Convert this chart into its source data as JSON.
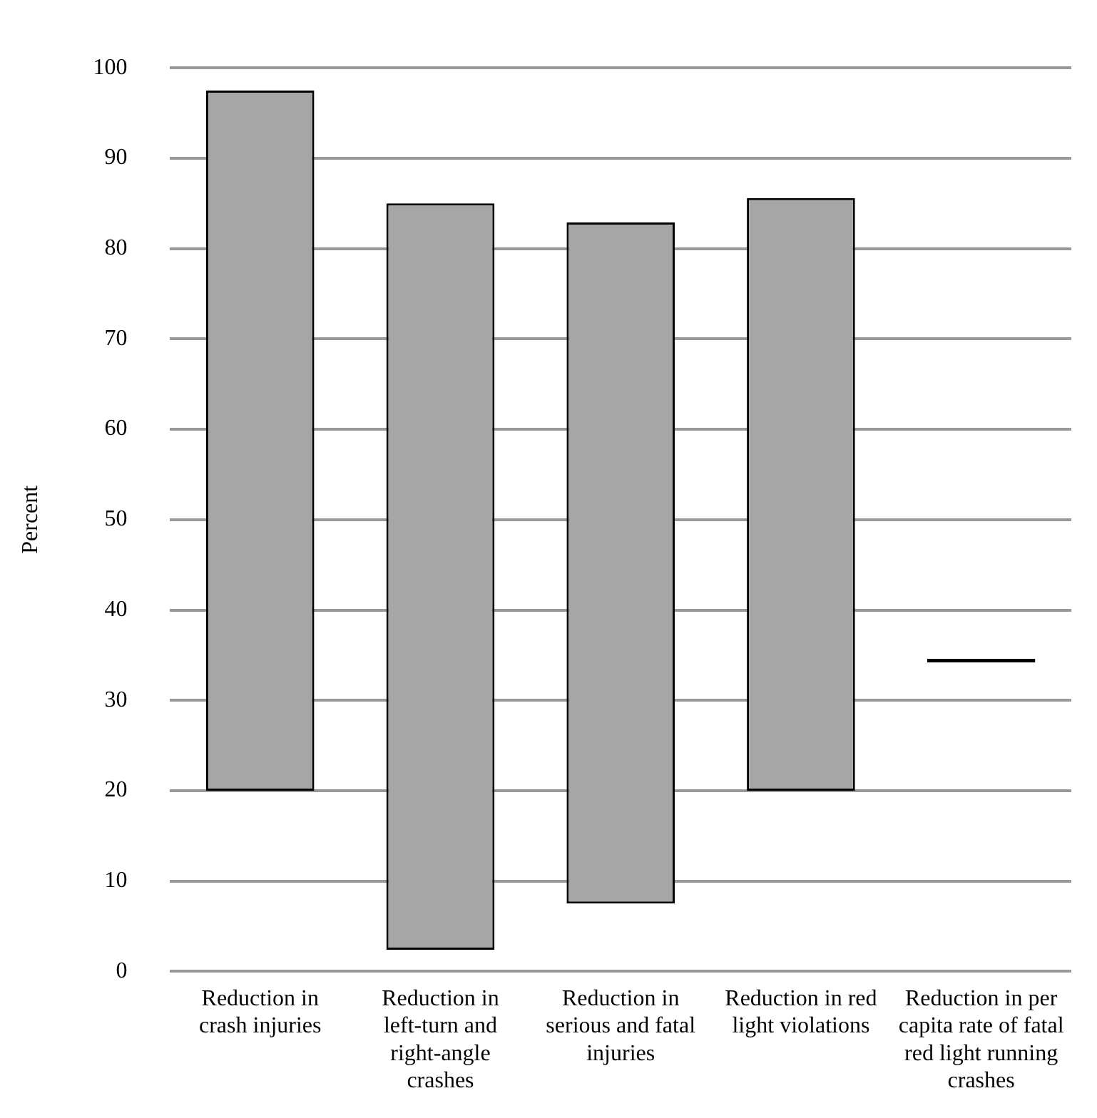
{
  "chart_data": {
    "type": "bar",
    "ylabel": "Percent",
    "categories": [
      "Reduction in crash injuries",
      "Reduction in left-turn and right-angle crashes",
      "Reduction in serious and fatal injuries",
      "Reduction in red light violations",
      "Reduction in per capita rate of fatal red light running crashes"
    ],
    "base": [
      20,
      2.4,
      7.5,
      20,
      34.2
    ],
    "values": [
      77.5,
      82.6,
      75.4,
      65.6,
      0.4
    ],
    "colors": [
      "#a6a6a6",
      "#a6a6a6",
      "#a6a6a6",
      "#a6a6a6",
      "#000000"
    ],
    "ylim": [
      0,
      100
    ],
    "yticks": [
      0,
      10,
      20,
      30,
      40,
      50,
      60,
      70,
      80,
      90,
      100
    ],
    "grid": "y",
    "legend": false
  }
}
